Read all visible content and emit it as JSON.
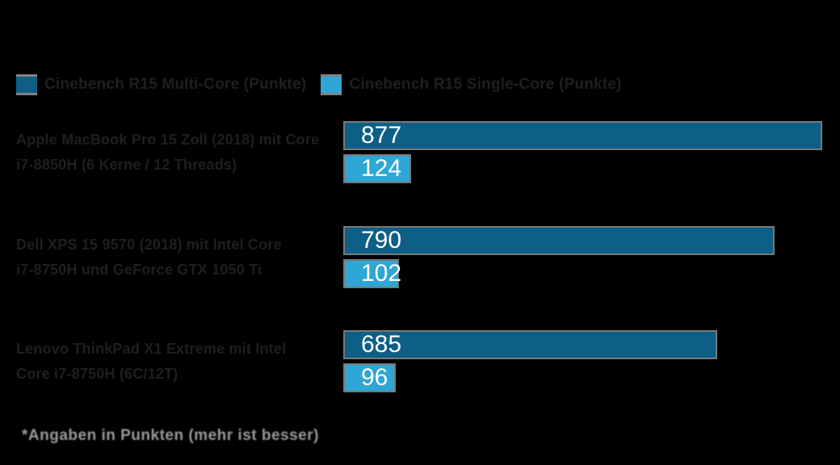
{
  "colors": {
    "background": "#000000",
    "series_primary": "#0e5f86",
    "series_secondary": "#2ea6d6",
    "bar_outline": "#787878",
    "value_label": "#ffffff",
    "label_text": "#1f1f1f",
    "footnote_text": "#9b9b9b"
  },
  "legend": {
    "items": [
      {
        "label": "Cinebench R15 Multi-Core (Punkte)",
        "color": "#0e5f86"
      },
      {
        "label": "Cinebench R15 Single-Core (Punkte)",
        "color": "#2ea6d6"
      }
    ]
  },
  "chart_data": {
    "type": "bar",
    "orientation": "horizontal",
    "title": "",
    "xlabel": "",
    "ylabel": "",
    "xlim": [
      0,
      910
    ],
    "grid": false,
    "legend_position": "top-left",
    "value_labels": "inside-left, white",
    "categories": [
      {
        "line1": "Apple MacBook Pro 15 Zoll (2018) mit Core",
        "line2": "i7-8850H (6 Kerne / 12 Threads)"
      },
      {
        "line1": "Dell XPS 15 9570 (2018) mit Intel Core",
        "line2": "i7-8750H und GeForce GTX 1050 Ti"
      },
      {
        "line1": "Lenovo ThinkPad X1 Extreme mit Intel",
        "line2": "Core i7-8750H (6C/12T)"
      }
    ],
    "series": [
      {
        "name": "Cinebench R15 Multi-Core (Punkte)",
        "color": "#0e5f86",
        "values": [
          877,
          790,
          685
        ]
      },
      {
        "name": "Cinebench R15 Single-Core (Punkte)",
        "color": "#2ea6d6",
        "values": [
          124,
          102,
          96
        ]
      }
    ],
    "footnote": "*Angaben in Punkten (mehr ist besser)"
  },
  "footnote": {
    "text": "*Angaben in Punkten (mehr ist besser)"
  }
}
